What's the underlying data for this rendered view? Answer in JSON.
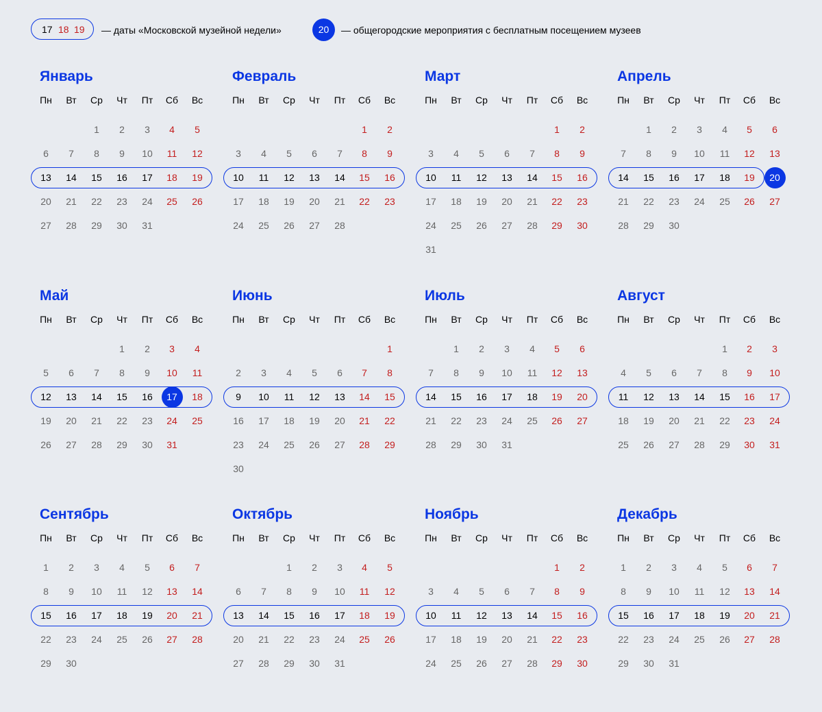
{
  "legend": {
    "pill_days": [
      "17",
      "18",
      "19"
    ],
    "museum_week_text": "— даты «Московской музейной недели»",
    "free_day": "20",
    "free_text": "— общегородские мероприятия с бесплатным посещением музеев"
  },
  "colors": {
    "accent": "#0b37e3",
    "weekend": "#c31d1d",
    "regular": "#666666",
    "background": "#e8ebf0"
  },
  "weekdays": [
    "Пн",
    "Вт",
    "Ср",
    "Чт",
    "Пт",
    "Сб",
    "Вс"
  ],
  "months": [
    {
      "name": "Январь",
      "start": 2,
      "days": 31,
      "week_row": 2,
      "pill_start": 0,
      "pill_end": 6,
      "free": []
    },
    {
      "name": "Февраль",
      "start": 5,
      "days": 28,
      "week_row": 2,
      "pill_start": 0,
      "pill_end": 6,
      "free": []
    },
    {
      "name": "Март",
      "start": 5,
      "days": 31,
      "week_row": 2,
      "pill_start": 0,
      "pill_end": 6,
      "free": []
    },
    {
      "name": "Апрель",
      "start": 1,
      "days": 30,
      "week_row": 2,
      "pill_start": 0,
      "pill_end": 5,
      "free": [
        20
      ]
    },
    {
      "name": "Май",
      "start": 3,
      "days": 31,
      "week_row": 2,
      "pill_start": 0,
      "pill_end": 6,
      "free": [
        17
      ]
    },
    {
      "name": "Июнь",
      "start": 6,
      "days": 30,
      "week_row": 2,
      "pill_start": 0,
      "pill_end": 6,
      "free": []
    },
    {
      "name": "Июль",
      "start": 1,
      "days": 31,
      "week_row": 2,
      "pill_start": 0,
      "pill_end": 6,
      "free": []
    },
    {
      "name": "Август",
      "start": 4,
      "days": 31,
      "week_row": 2,
      "pill_start": 0,
      "pill_end": 6,
      "free": []
    },
    {
      "name": "Сентябрь",
      "start": 0,
      "days": 30,
      "week_row": 2,
      "pill_start": 0,
      "pill_end": 6,
      "free": []
    },
    {
      "name": "Октябрь",
      "start": 2,
      "days": 31,
      "week_row": 2,
      "pill_start": 0,
      "pill_end": 6,
      "free": []
    },
    {
      "name": "Ноябрь",
      "start": 5,
      "days": 30,
      "week_row": 2,
      "pill_start": 0,
      "pill_end": 6,
      "free": []
    },
    {
      "name": "Декабрь",
      "start": 0,
      "days": 31,
      "week_row": 2,
      "pill_start": 0,
      "pill_end": 6,
      "free": []
    }
  ]
}
